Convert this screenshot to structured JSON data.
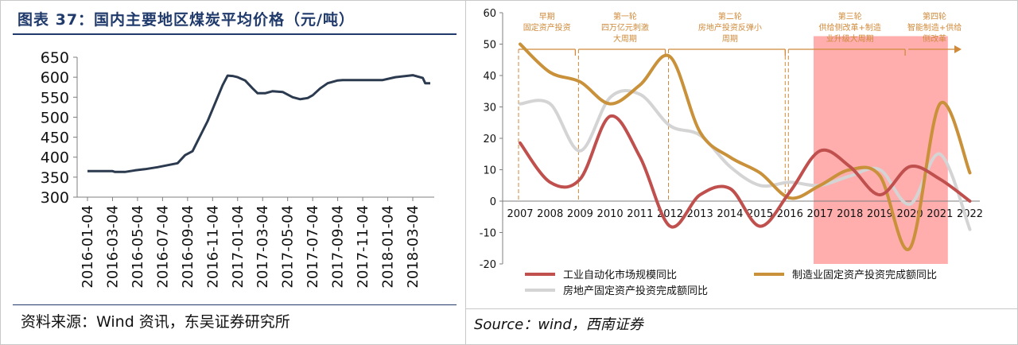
{
  "left_panel": {
    "title": "图表 37：国内主要地区煤炭平均价格（元/吨）",
    "source": "资料来源：Wind 资讯，东吴证券研究所"
  },
  "right_panel": {
    "source": "Source：wind，西南证券"
  },
  "chart_data": [
    {
      "type": "line",
      "title": "",
      "xlabel": "",
      "ylabel": "",
      "ylim": [
        300,
        650
      ],
      "yticks": [
        300,
        350,
        400,
        450,
        500,
        550,
        600,
        650
      ],
      "x_tick_labels": [
        "2016-01-04",
        "2016-03-04",
        "2016-05-04",
        "2016-07-04",
        "2016-09-04",
        "2016-11-04",
        "2017-01-04",
        "2017-03-04",
        "2017-05-04",
        "2017-07-04",
        "2017-09-04",
        "2017-11-04",
        "2018-01-04",
        "2018-03-04"
      ],
      "grid": false,
      "legend": "none",
      "series": [
        {
          "color": "#2b3a4f",
          "x": [
            0.0,
            0.5,
            1.0,
            1.1,
            1.5,
            1.9,
            2.3,
            2.8,
            3.6,
            3.9,
            4.2,
            4.4,
            4.6,
            4.8,
            5.0,
            5.2,
            5.4,
            5.6,
            5.8,
            6.0,
            6.3,
            6.6,
            6.8,
            7.1,
            7.4,
            7.8,
            8.2,
            8.5,
            8.8,
            9.0,
            9.3,
            9.6,
            10.0,
            10.2,
            11.0,
            11.8,
            12.3,
            13.0,
            13.4,
            13.5,
            13.7
          ],
          "values": [
            365,
            365,
            365,
            363,
            363,
            367,
            370,
            375,
            385,
            405,
            415,
            440,
            465,
            490,
            520,
            550,
            580,
            604,
            603,
            600,
            592,
            572,
            560,
            560,
            565,
            563,
            550,
            545,
            548,
            555,
            572,
            585,
            592,
            593,
            593,
            593,
            600,
            605,
            598,
            585,
            585
          ]
        }
      ]
    },
    {
      "type": "line",
      "title": "",
      "xlabel": "",
      "ylabel": "",
      "ylim": [
        -20,
        60
      ],
      "yticks": [
        -20,
        -10,
        0,
        10,
        20,
        30,
        40,
        50,
        60
      ],
      "categories": [
        "2007",
        "2008",
        "2009",
        "2010",
        "2011",
        "2012",
        "2013",
        "2014",
        "2015",
        "2016",
        "2017",
        "2018",
        "2019",
        "2020",
        "2021",
        "2022"
      ],
      "grid": false,
      "legend": "bottom",
      "series": [
        {
          "name": "工业自动化市场规模同比",
          "color": "#c0504d",
          "values": [
            18.5,
            6,
            7,
            27,
            14,
            -8,
            2,
            4,
            -8,
            3,
            16,
            11,
            2,
            11,
            7,
            0
          ]
        },
        {
          "name": "制造业固定资产投资完成额同比",
          "color": "#c8913a",
          "values": [
            50,
            41,
            38,
            31,
            37,
            46,
            22,
            14,
            9,
            1,
            5,
            10,
            8,
            -15,
            31,
            9
          ]
        },
        {
          "name": "房地产固定资产投资完成额同比",
          "color": "#d4d4d4",
          "values": [
            31,
            31,
            16,
            33,
            34,
            24,
            21,
            11,
            5,
            6,
            5,
            8,
            10,
            -1,
            15,
            -9
          ]
        }
      ],
      "annotations": [
        {
          "label": "早期\n固定资产投资",
          "from": "2007",
          "to": "2009"
        },
        {
          "label": "第一轮\n四万亿元刺激\n大周期",
          "from": "2009",
          "to": "2012"
        },
        {
          "label": "第二轮\n房地产投资反弹小\n周期",
          "from": "2012",
          "to": "2016"
        },
        {
          "label": "第三轮\n供给侧改革+制造\n业升级大周期",
          "from": "2016",
          "to": "2020"
        },
        {
          "label": "第四轮\n智能制造+供给\n侧改革",
          "from": "2020",
          "to": "2022"
        }
      ],
      "highlight": {
        "from": "2017",
        "to": "2021",
        "color": "#ff9999"
      }
    }
  ]
}
